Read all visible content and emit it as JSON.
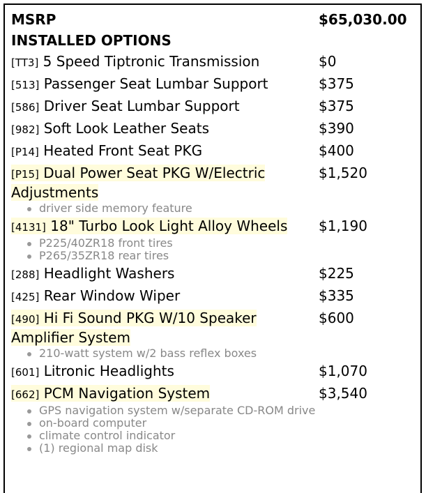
{
  "msrp": {
    "label": "MSRP",
    "value": "$65,030.00"
  },
  "installed_options_label": "INSTALLED OPTIONS",
  "options": [
    {
      "code": "[TT3]",
      "name": "5 Speed Tiptronic Transmission",
      "price": "$0",
      "highlight": false,
      "details": []
    },
    {
      "code": "[513]",
      "name": "Passenger Seat Lumbar Support",
      "price": "$375",
      "highlight": false,
      "details": []
    },
    {
      "code": "[586]",
      "name": "Driver Seat Lumbar Support",
      "price": "$375",
      "highlight": false,
      "details": []
    },
    {
      "code": "[982]",
      "name": "Soft Look Leather Seats",
      "price": "$390",
      "highlight": false,
      "details": []
    },
    {
      "code": "[P14]",
      "name": "Heated Front Seat PKG",
      "price": "$400",
      "highlight": false,
      "details": []
    },
    {
      "code": "[P15]",
      "name": "Dual Power Seat PKG W/Electric Adjustments",
      "price": "$1,520",
      "highlight": true,
      "details": [
        "driver side memory feature"
      ]
    },
    {
      "code": "[4131]",
      "name": "18\" Turbo Look Light Alloy Wheels",
      "price": "$1,190",
      "highlight": true,
      "details": [
        "P225/40ZR18 front tires",
        "P265/35ZR18 rear tires"
      ]
    },
    {
      "code": "[288]",
      "name": "Headlight Washers",
      "price": "$225",
      "highlight": false,
      "details": []
    },
    {
      "code": "[425]",
      "name": "Rear Window Wiper",
      "price": "$335",
      "highlight": false,
      "details": []
    },
    {
      "code": "[490]",
      "name": "Hi Fi Sound PKG W/10 Speaker Amplifier System",
      "price": "$600",
      "highlight": true,
      "details": [
        "210-watt system w/2 bass reflex boxes"
      ]
    },
    {
      "code": "[601]",
      "name": "Litronic Headlights",
      "price": "$1,070",
      "highlight": false,
      "details": []
    },
    {
      "code": "[662]",
      "name": "PCM Navigation System",
      "price": "$3,540",
      "highlight": true,
      "details": [
        "GPS navigation system w/separate CD-ROM drive",
        "on-board computer",
        "climate control indicator",
        "(1) regional map disk"
      ]
    }
  ],
  "colors": {
    "highlight": "#fffcdc",
    "detail_text": "#888888"
  }
}
